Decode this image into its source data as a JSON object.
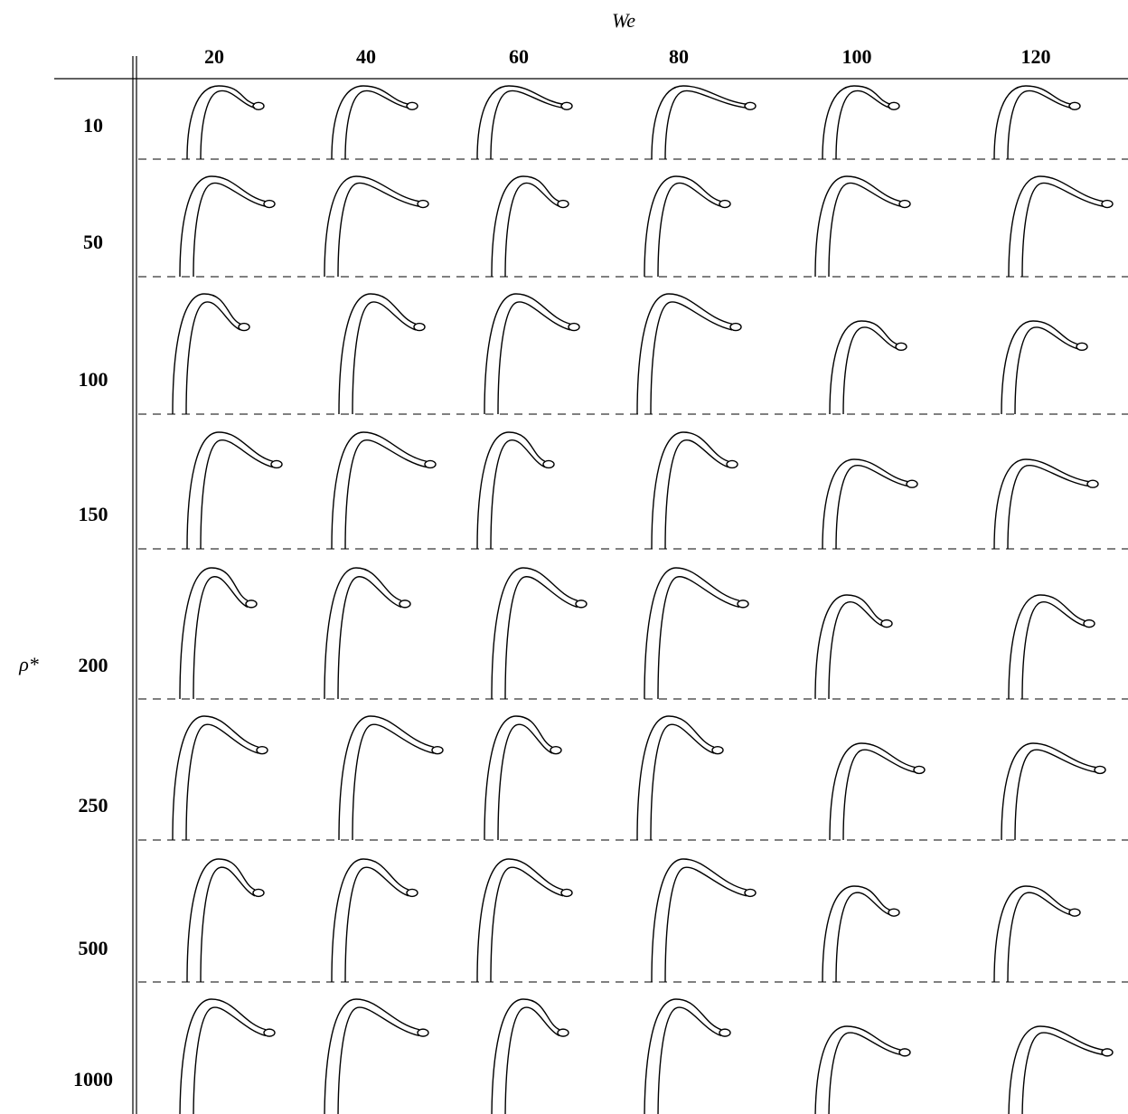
{
  "header": {
    "axis_label": "We",
    "columns": [
      "20",
      "40",
      "60",
      "80",
      "100",
      "120"
    ]
  },
  "row_axis_label": "ρ*",
  "rows": [
    "10",
    "50",
    "100",
    "150",
    "200",
    "250",
    "500",
    "1000"
  ]
}
